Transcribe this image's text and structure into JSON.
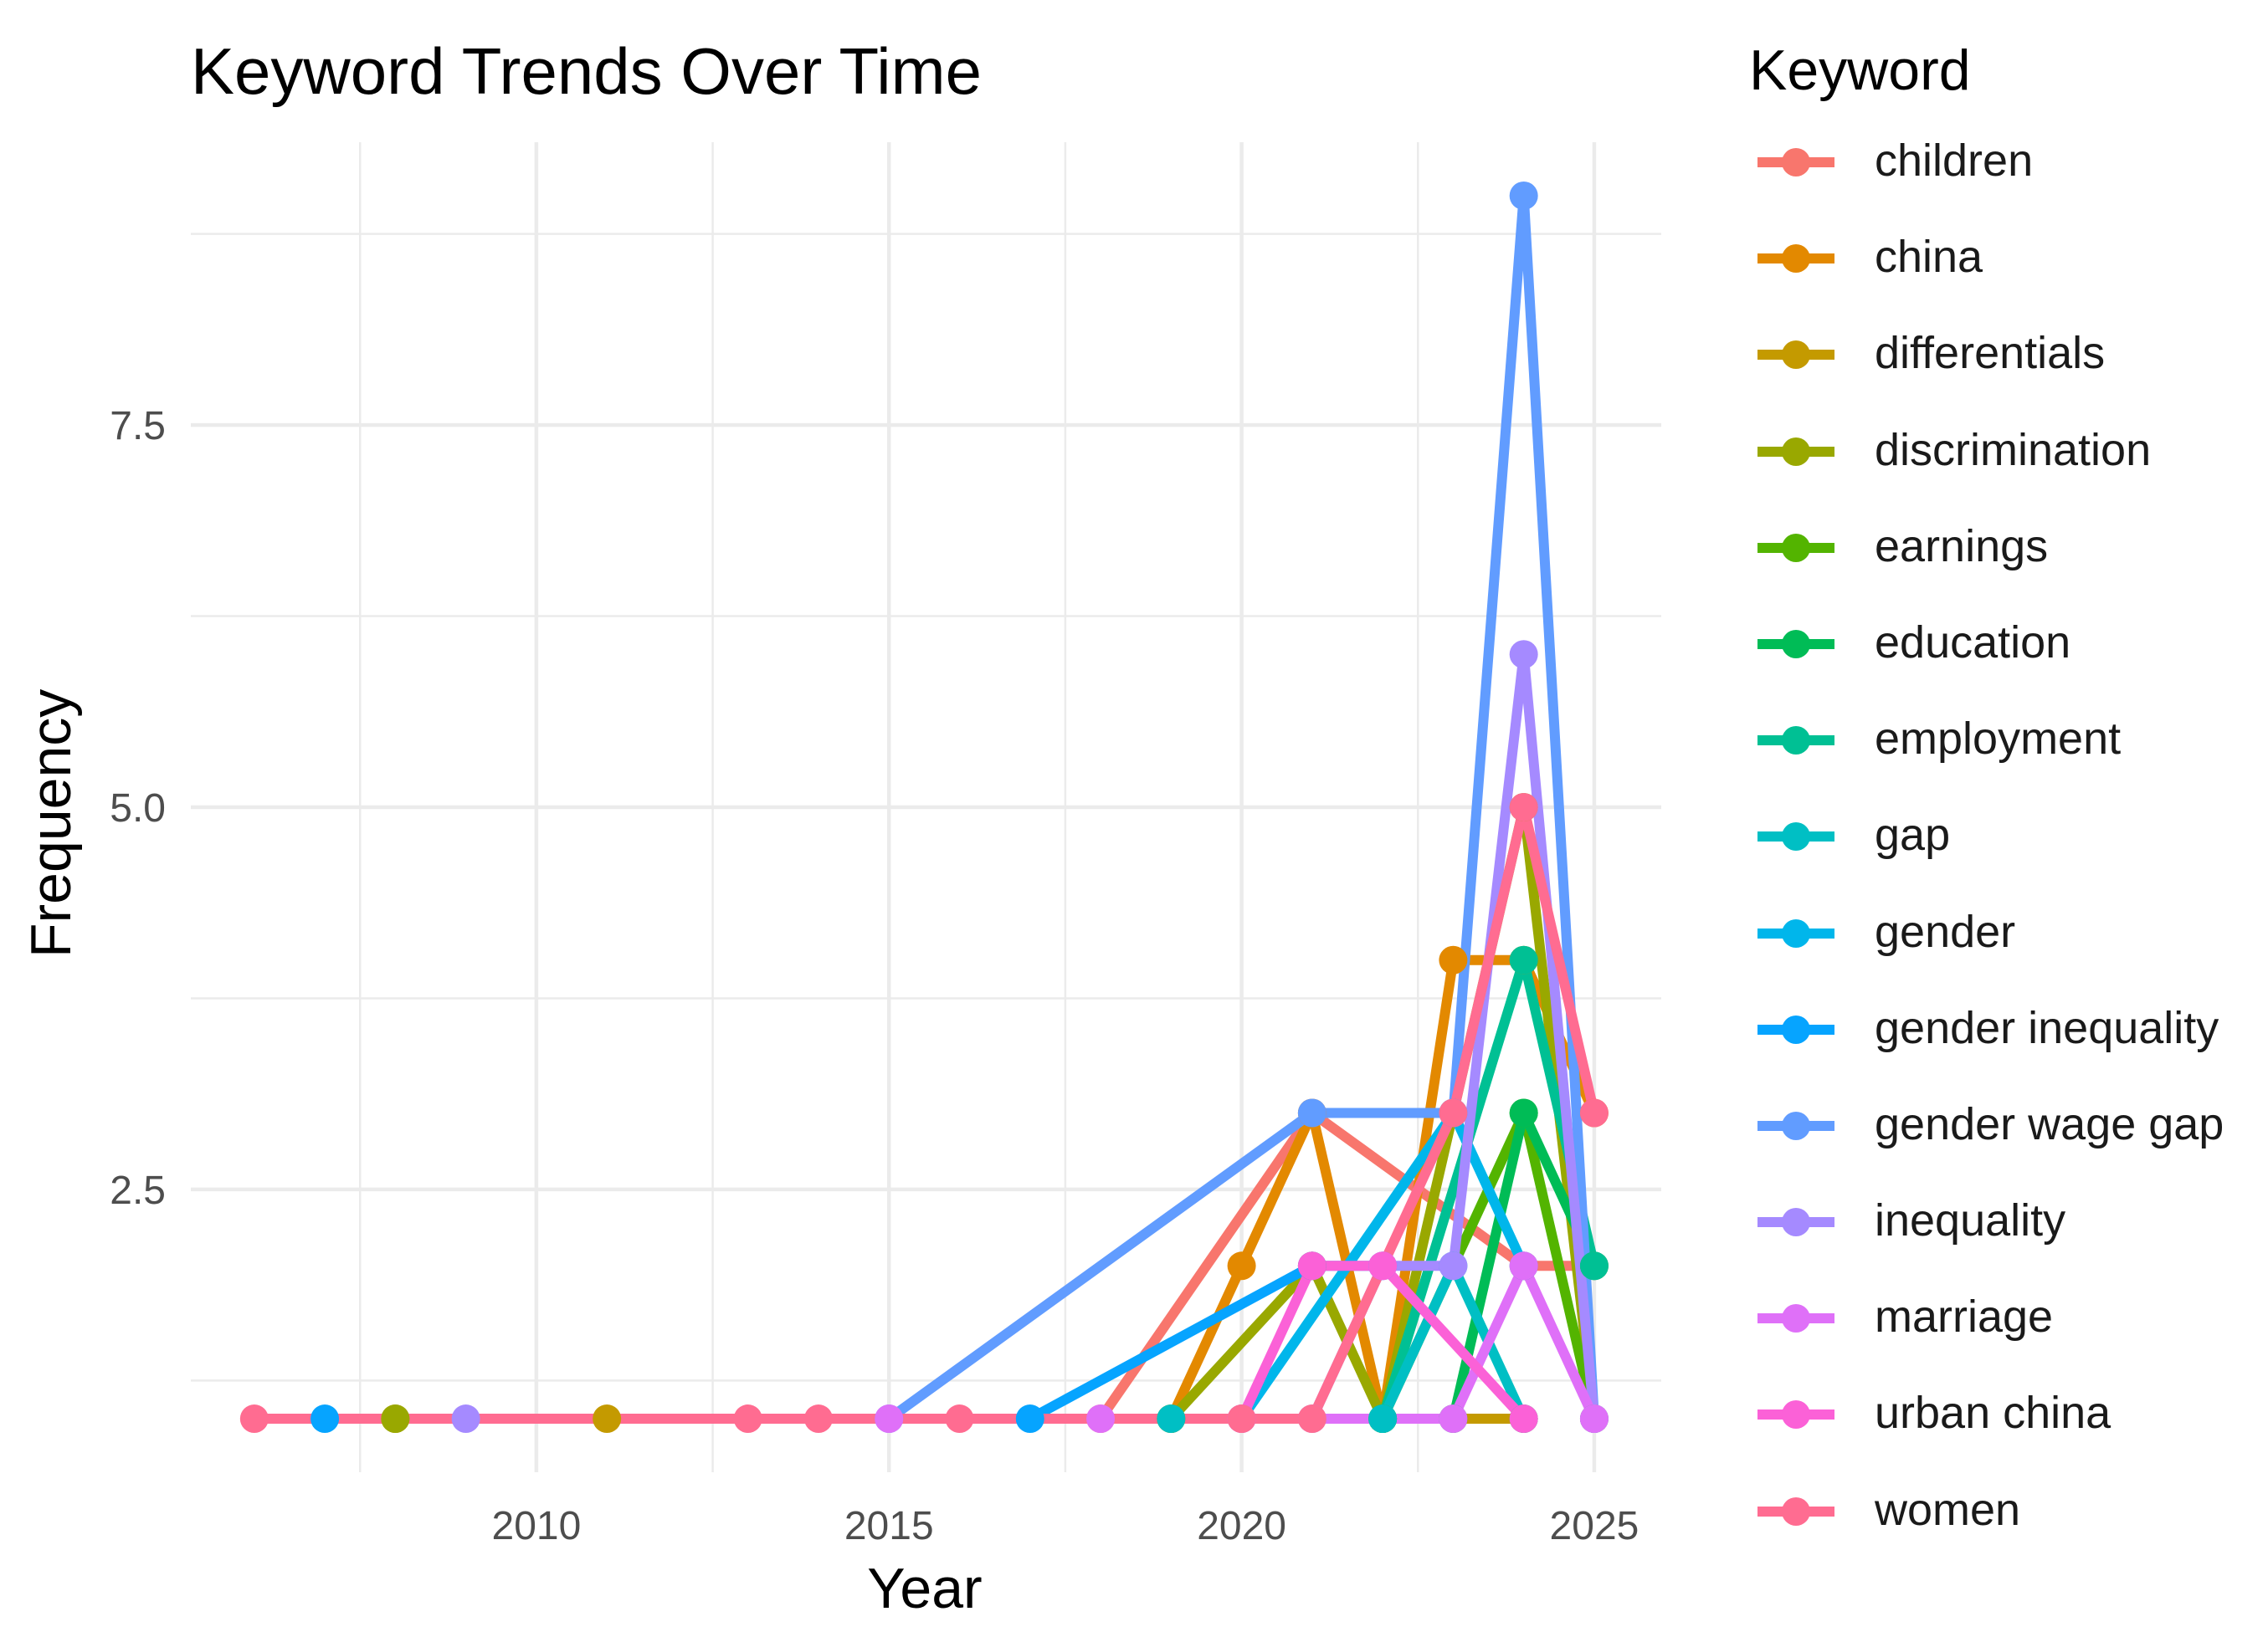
{
  "chart_data": {
    "type": "line",
    "title": "Keyword Trends Over Time",
    "xlabel": "Year",
    "ylabel": "Frequency",
    "xlim": [
      2005.1,
      2025.95
    ],
    "ylim": [
      0.65,
      9.35
    ],
    "xticks": [
      2010,
      2015,
      2020,
      2025
    ],
    "xtick_labels": [
      "2010",
      "2015",
      "2020",
      "2025"
    ],
    "yticks": [
      2.5,
      5.0,
      7.5
    ],
    "ytick_labels": [
      "2.5",
      "5.0",
      "7.5"
    ],
    "grid": true,
    "legend_title": "Keyword",
    "legend_position": "right",
    "series": [
      {
        "name": "children",
        "color": "#F8766D",
        "points": [
          [
            2018,
            1
          ],
          [
            2021,
            3
          ],
          [
            2024,
            2
          ],
          [
            2025,
            2
          ]
        ]
      },
      {
        "name": "china",
        "color": "#E38900",
        "points": [
          [
            2019,
            1
          ],
          [
            2020,
            2
          ],
          [
            2021,
            3
          ],
          [
            2022,
            1
          ],
          [
            2023,
            4
          ],
          [
            2024,
            4
          ],
          [
            2025,
            3
          ]
        ]
      },
      {
        "name": "differentials",
        "color": "#C49A00",
        "points": [
          [
            2008,
            1
          ],
          [
            2011,
            1
          ],
          [
            2024,
            1
          ]
        ]
      },
      {
        "name": "discrimination",
        "color": "#99A800",
        "points": [
          [
            2008,
            1
          ],
          [
            2019,
            1
          ],
          [
            2021,
            2
          ],
          [
            2022,
            1
          ],
          [
            2024,
            5
          ],
          [
            2025,
            1
          ]
        ]
      },
      {
        "name": "earnings",
        "color": "#53B400",
        "points": [
          [
            2022,
            1
          ],
          [
            2024,
            3
          ],
          [
            2025,
            1
          ]
        ]
      },
      {
        "name": "education",
        "color": "#00BC56",
        "points": [
          [
            2023,
            1
          ],
          [
            2024,
            3
          ],
          [
            2025,
            2
          ]
        ]
      },
      {
        "name": "employment",
        "color": "#00C094",
        "points": [
          [
            2022,
            1
          ],
          [
            2024,
            4
          ],
          [
            2025,
            2
          ]
        ]
      },
      {
        "name": "gap",
        "color": "#00BFC4",
        "points": [
          [
            2019,
            1
          ],
          [
            2022,
            1
          ],
          [
            2023,
            2
          ],
          [
            2024,
            1
          ]
        ]
      },
      {
        "name": "gender",
        "color": "#00B6EB",
        "points": [
          [
            2020,
            1
          ],
          [
            2023,
            3
          ],
          [
            2024,
            2
          ]
        ]
      },
      {
        "name": "gender inequality",
        "color": "#06A4FF",
        "points": [
          [
            2007,
            1
          ],
          [
            2017,
            1
          ],
          [
            2021,
            2
          ],
          [
            2022,
            2
          ]
        ]
      },
      {
        "name": "gender wage gap",
        "color": "#619CFF",
        "points": [
          [
            2015,
            1
          ],
          [
            2021,
            3
          ],
          [
            2023,
            3
          ],
          [
            2024,
            9
          ],
          [
            2025,
            1
          ]
        ]
      },
      {
        "name": "inequality",
        "color": "#A58AFF",
        "points": [
          [
            2009,
            1
          ],
          [
            2021,
            1
          ],
          [
            2022,
            2
          ],
          [
            2023,
            2
          ],
          [
            2024,
            6
          ],
          [
            2025,
            1
          ]
        ]
      },
      {
        "name": "marriage",
        "color": "#DF70F8",
        "points": [
          [
            2015,
            1
          ],
          [
            2018,
            1
          ],
          [
            2020,
            1
          ],
          [
            2023,
            1
          ],
          [
            2024,
            2
          ],
          [
            2025,
            1
          ]
        ]
      },
      {
        "name": "urban china",
        "color": "#FB61D7",
        "points": [
          [
            2020,
            1
          ],
          [
            2021,
            2
          ],
          [
            2022,
            2
          ],
          [
            2024,
            1
          ]
        ]
      },
      {
        "name": "women",
        "color": "#FF6C91",
        "points": [
          [
            2006,
            1
          ],
          [
            2013,
            1
          ],
          [
            2014,
            1
          ],
          [
            2016,
            1
          ],
          [
            2020,
            1
          ],
          [
            2021,
            1
          ],
          [
            2023,
            3
          ],
          [
            2024,
            5
          ],
          [
            2025,
            3
          ]
        ]
      }
    ]
  }
}
